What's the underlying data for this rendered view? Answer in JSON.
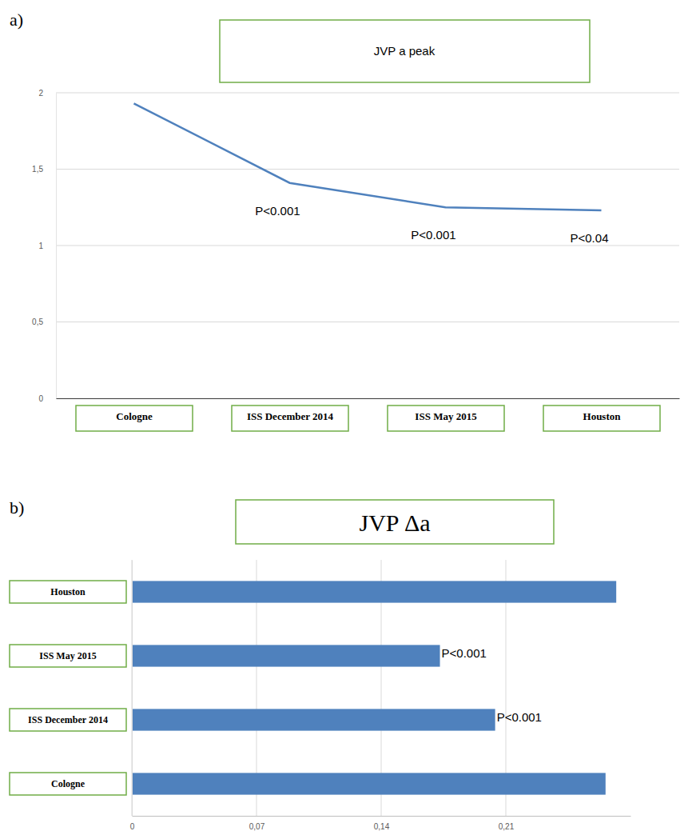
{
  "chart_data": [
    {
      "type": "line",
      "panel": "a)",
      "title": "JVP a peak",
      "categories": [
        "Cologne",
        "ISS December 2014",
        "ISS May 2015",
        "Houston"
      ],
      "values": [
        1.93,
        1.41,
        1.25,
        1.23
      ],
      "annotations": [
        null,
        "P<0.001",
        "P<0.001",
        "P<0.04"
      ],
      "color": "#4f81bd",
      "ylim": [
        0,
        2
      ],
      "yticks": [
        0,
        {
          "value": 0.5,
          "label": "0,5"
        },
        1,
        {
          "value": 1.5,
          "label": "1,5"
        },
        2
      ],
      "grid": true
    },
    {
      "type": "bar",
      "panel": "b)",
      "title": "JVP Δa",
      "orientation": "horizontal",
      "categories": [
        "Cologne",
        "ISS December 2014",
        "ISS May 2015",
        "Houston"
      ],
      "values": [
        0.266,
        0.204,
        0.173,
        0.272
      ],
      "annotations": [
        null,
        "P<0.001",
        "P<0.001",
        null
      ],
      "color": "#4f81bd",
      "xlim": [
        0,
        0.28
      ],
      "xticks": [
        0,
        {
          "value": 0.07,
          "label": "0,07"
        },
        {
          "value": 0.14,
          "label": "0,14"
        },
        {
          "value": 0.21,
          "label": "0,21"
        }
      ],
      "grid": true
    }
  ]
}
